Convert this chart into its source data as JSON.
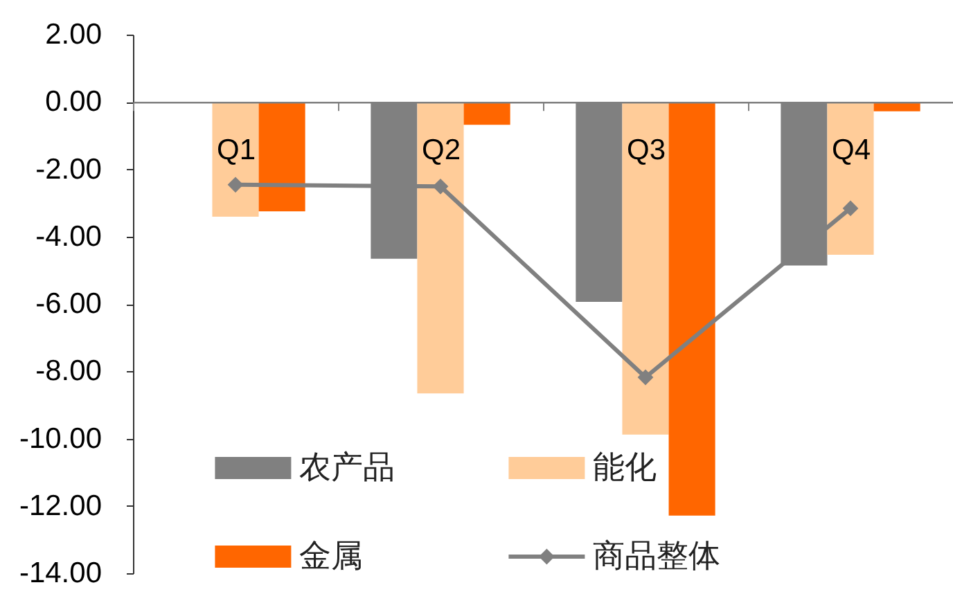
{
  "chart_data": {
    "type": "bar",
    "categories": [
      "Q1",
      "Q2",
      "Q3",
      "Q4"
    ],
    "series": [
      {
        "name": "农产品",
        "color": "#808080",
        "values": [
          null,
          -4.66,
          -5.94,
          -4.86
        ]
      },
      {
        "name": "能化",
        "color": "#ffcc99",
        "values": [
          -3.41,
          -8.66,
          -9.88,
          -4.54
        ]
      },
      {
        "name": "金属",
        "color": "#ff6600",
        "values": [
          -3.25,
          -0.68,
          -12.29,
          -0.28
        ]
      },
      {
        "name": "商品整体",
        "type": "line",
        "color": "#808080",
        "marker": "diamond",
        "line_style": "solid",
        "values": [
          -2.46,
          -2.51,
          -8.18,
          -3.16
        ]
      }
    ],
    "ylim": [
      -14,
      2
    ],
    "yticks": [
      {
        "value": 2,
        "label": "2.00"
      },
      {
        "value": 0,
        "label": "0.00"
      },
      {
        "value": -2,
        "label": "-2.00"
      },
      {
        "value": -4,
        "label": "-4.00"
      },
      {
        "value": -6,
        "label": "-6.00"
      },
      {
        "value": -8,
        "label": "-8.00"
      },
      {
        "value": -10,
        "label": "-10.00"
      },
      {
        "value": -12,
        "label": "-12.00"
      },
      {
        "value": -14,
        "label": "-14.00"
      }
    ],
    "grid": false,
    "legend": "bottom"
  }
}
